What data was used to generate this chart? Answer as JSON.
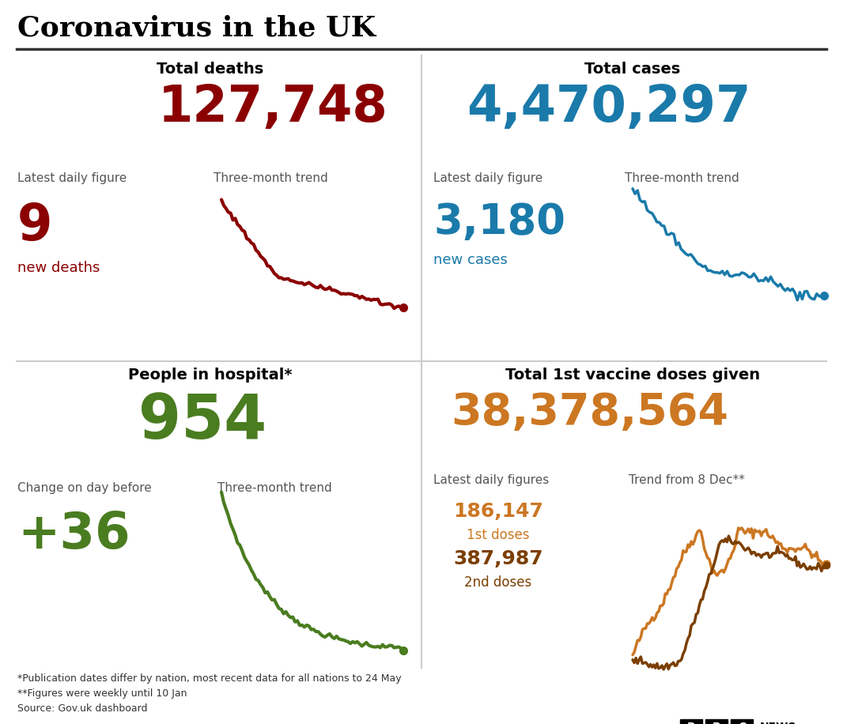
{
  "title": "Coronavirus in the UK",
  "title_color": "#000000",
  "background_color": "#ffffff",
  "panel_tl_header": "Total deaths",
  "panel_tl_big_number": "127,748",
  "panel_tl_big_color": "#8B0000",
  "panel_tl_label1": "Latest daily figure",
  "panel_tl_label2": "Three-month trend",
  "panel_tl_daily": "9",
  "panel_tl_daily_label": "new deaths",
  "panel_tl_daily_color": "#8B0000",
  "panel_tr_header": "Total cases",
  "panel_tr_big_number": "4,470,297",
  "panel_tr_big_color": "#1a7aaa",
  "panel_tr_label1": "Latest daily figure",
  "panel_tr_label2": "Three-month trend",
  "panel_tr_daily": "3,180",
  "panel_tr_daily_label": "new cases",
  "panel_tr_daily_color": "#1a7aaa",
  "panel_bl_header": "People in hospital*",
  "panel_bl_big_number": "954",
  "panel_bl_big_color": "#4a7c20",
  "panel_bl_label1": "Change on day before",
  "panel_bl_label2": "Three-month trend",
  "panel_bl_daily": "+36",
  "panel_bl_daily_color": "#4a7c20",
  "panel_br_header": "Total 1st vaccine doses given",
  "panel_br_big_number": "38,378,564",
  "panel_br_big_color": "#cc7722",
  "panel_br_label1": "Latest daily figures",
  "panel_br_label2": "Trend from 8 Dec**",
  "panel_br_daily1": "186,147",
  "panel_br_daily1_label": "1st doses",
  "panel_br_daily1_color": "#cc7722",
  "panel_br_daily2": "387,987",
  "panel_br_daily2_label": "2nd doses",
  "panel_br_daily2_color": "#7B3F00",
  "footnote1": "*Publication dates differ by nation, most recent data for all nations to 24 May",
  "footnote2": "**Figures were weekly until 10 Jan",
  "footnote3": "Source: Gov.uk dashboard",
  "deaths_trend_color": "#8B0000",
  "cases_trend_color": "#1a7aaa",
  "hospital_trend_color": "#4a7c20",
  "vaccine_1st_trend_color": "#cc7722",
  "vaccine_2nd_trend_color": "#7B3F00",
  "label_color": "#555555",
  "header_color": "#000000",
  "divider_color": "#555555"
}
